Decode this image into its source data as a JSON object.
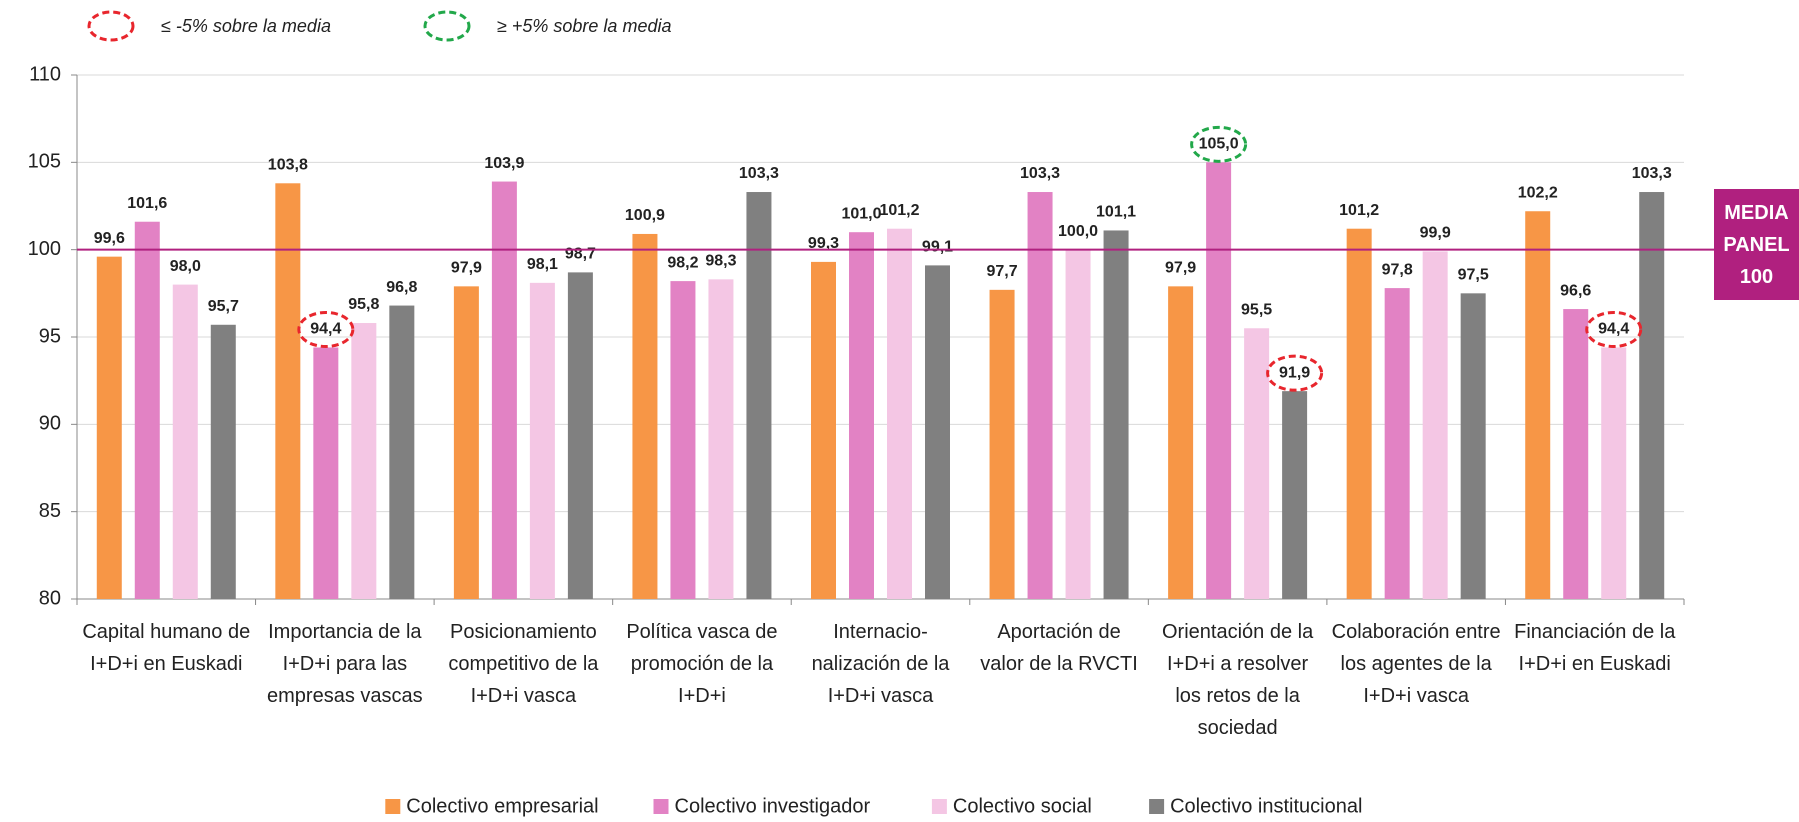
{
  "chart_data": {
    "type": "bar",
    "categories": [
      "Capital humano de I+D+i en Euskadi",
      "Importancia de la I+D+i para las empresas vascas",
      "Posicionamiento competitivo de la I+D+i vasca",
      "Política vasca de promoción de la I+D+i",
      "Internacio-nalización de la I+D+i vasca",
      "Aportación de valor de la RVCTI",
      "Orientación de la I+D+i a resolver los retos de la sociedad",
      "Colaboración entre los agentes de la I+D+i vasca",
      "Financiación de la I+D+i en Euskadi"
    ],
    "series": [
      {
        "name": "Colectivo empresarial",
        "color": "#f79646",
        "values": [
          99.6,
          103.8,
          97.9,
          100.9,
          99.3,
          97.7,
          97.9,
          101.2,
          102.2
        ],
        "value_labels": [
          "99,6",
          "103,8",
          "97,9",
          "100,9",
          "99,3",
          "97,7",
          "97,9",
          "101,2",
          "102,2"
        ]
      },
      {
        "name": "Colectivo investigador",
        "color": "#e282c4",
        "values": [
          101.6,
          94.4,
          103.9,
          98.2,
          101.0,
          103.3,
          105.0,
          97.8,
          96.6
        ],
        "value_labels": [
          "101,6",
          "94,4",
          "103,9",
          "98,2",
          "101,0",
          "103,3",
          "105,0",
          "97,8",
          "96,6"
        ]
      },
      {
        "name": "Colectivo social",
        "color": "#f4c6e4",
        "values": [
          98.0,
          95.8,
          98.1,
          98.3,
          101.2,
          100.0,
          95.5,
          99.9,
          94.4
        ],
        "value_labels": [
          "98,0",
          "95,8",
          "98,1",
          "98,3",
          "101,2",
          "100,0",
          "95,5",
          "99,9",
          "94,4"
        ]
      },
      {
        "name": "Colectivo institucional",
        "color": "#808080",
        "values": [
          95.7,
          96.8,
          98.7,
          103.3,
          99.1,
          101.1,
          91.9,
          97.5,
          103.3
        ],
        "value_labels": [
          "95,7",
          "96,8",
          "98,7",
          "103,3",
          "99,1",
          "101,1",
          "91,9",
          "97,5",
          "103,3"
        ]
      }
    ],
    "ylim": [
      80,
      110
    ],
    "yticks": [
      80,
      85,
      90,
      95,
      100,
      105,
      110
    ],
    "grid": true,
    "legend": "bottom",
    "reference_line": {
      "value": 100,
      "label": "MEDIA PANEL",
      "color": "#b0207f"
    },
    "threshold_legend": [
      {
        "label": "≤ -5% sobre la media",
        "color": "#e8262d"
      },
      {
        "label": "≥ +5% sobre la media",
        "color": "#22a84a"
      }
    ],
    "highlights": [
      {
        "series": 1,
        "index": 1,
        "legend": 0
      },
      {
        "series": 3,
        "index": 6,
        "legend": 0
      },
      {
        "series": 2,
        "index": 8,
        "legend": 0
      },
      {
        "series": 1,
        "index": 6,
        "legend": 1
      }
    ]
  }
}
